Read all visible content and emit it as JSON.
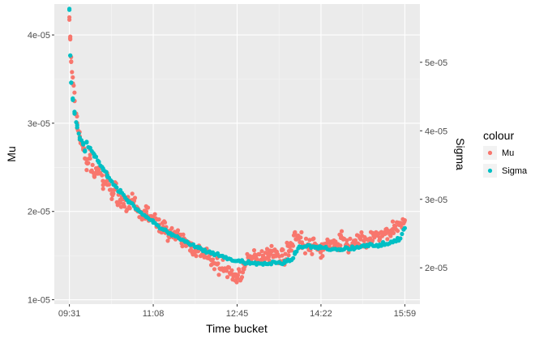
{
  "chart_data": {
    "type": "scatter",
    "xlabel": "Time bucket",
    "ylabel": "Mu",
    "y2label": "Sigma",
    "x_ticks": [
      "09:31",
      "11:08",
      "12:45",
      "14:22",
      "15:59"
    ],
    "x_range": [
      "09:31",
      "15:59"
    ],
    "y_ticks": [
      "1e-05",
      "2e-05",
      "3e-05",
      "4e-05"
    ],
    "y_range": [
      9.5e-06,
      4.35e-05
    ],
    "y2_ticks": [
      "2e-05",
      "3e-05",
      "4e-05",
      "5e-05"
    ],
    "y2_range": [
      1.47e-05,
      5.85e-05
    ],
    "grid": true,
    "legend": {
      "title": "colour",
      "position": "right",
      "entries": [
        {
          "name": "Mu",
          "color": "#F8766D"
        },
        {
          "name": "Sigma",
          "color": "#00BFC4"
        }
      ]
    },
    "series": [
      {
        "name": "Mu",
        "axis": "left",
        "color": "#F8766D",
        "points": [
          [
            "09:31",
            4.2e-05
          ],
          [
            "09:32",
            3.95e-05
          ],
          [
            "09:33",
            3.7e-05
          ],
          [
            "09:35",
            3.45e-05
          ],
          [
            "09:37",
            3.25e-05
          ],
          [
            "09:40",
            3e-05
          ],
          [
            "09:43",
            2.85e-05
          ],
          [
            "09:47",
            2.7e-05
          ],
          [
            "09:51",
            2.55e-05
          ],
          [
            "09:55",
            2.6e-05
          ],
          [
            "10:00",
            2.4e-05
          ],
          [
            "10:05",
            2.5e-05
          ],
          [
            "10:10",
            2.3e-05
          ],
          [
            "10:15",
            2.35e-05
          ],
          [
            "10:20",
            2.2e-05
          ],
          [
            "10:25",
            2.25e-05
          ],
          [
            "10:30",
            2.1e-05
          ],
          [
            "10:35",
            2.15e-05
          ],
          [
            "10:40",
            2.05e-05
          ],
          [
            "10:45",
            2.1e-05
          ],
          [
            "10:50",
            2e-05
          ],
          [
            "10:55",
            1.95e-05
          ],
          [
            "11:00",
            2e-05
          ],
          [
            "11:08",
            1.9e-05
          ],
          [
            "11:15",
            1.85e-05
          ],
          [
            "11:22",
            1.8e-05
          ],
          [
            "11:30",
            1.75e-05
          ],
          [
            "11:37",
            1.7e-05
          ],
          [
            "11:45",
            1.65e-05
          ],
          [
            "11:52",
            1.6e-05
          ],
          [
            "12:00",
            1.55e-05
          ],
          [
            "12:07",
            1.5e-05
          ],
          [
            "12:15",
            1.45e-05
          ],
          [
            "12:22",
            1.4e-05
          ],
          [
            "12:30",
            1.35e-05
          ],
          [
            "12:37",
            1.3e-05
          ],
          [
            "12:45",
            1.25e-05
          ],
          [
            "12:52",
            1.35e-05
          ],
          [
            "13:00",
            1.45e-05
          ],
          [
            "13:07",
            1.5e-05
          ],
          [
            "13:15",
            1.5e-05
          ],
          [
            "13:22",
            1.55e-05
          ],
          [
            "13:30",
            1.5e-05
          ],
          [
            "13:37",
            1.5e-05
          ],
          [
            "13:45",
            1.55e-05
          ],
          [
            "13:52",
            1.75e-05
          ],
          [
            "14:00",
            1.65e-05
          ],
          [
            "14:07",
            1.6e-05
          ],
          [
            "14:15",
            1.6e-05
          ],
          [
            "14:22",
            1.55e-05
          ],
          [
            "14:30",
            1.65e-05
          ],
          [
            "14:37",
            1.6e-05
          ],
          [
            "14:45",
            1.7e-05
          ],
          [
            "14:52",
            1.6e-05
          ],
          [
            "15:00",
            1.65e-05
          ],
          [
            "15:07",
            1.7e-05
          ],
          [
            "15:15",
            1.6e-05
          ],
          [
            "15:22",
            1.75e-05
          ],
          [
            "15:30",
            1.7e-05
          ],
          [
            "15:37",
            1.75e-05
          ],
          [
            "15:45",
            1.8e-05
          ],
          [
            "15:52",
            1.85e-05
          ],
          [
            "15:59",
            1.9e-05
          ]
        ]
      },
      {
        "name": "Sigma",
        "axis": "right",
        "color": "#00BFC4",
        "points": [
          [
            "09:31",
            5.78e-05
          ],
          [
            "09:32",
            5.1e-05
          ],
          [
            "09:33",
            4.7e-05
          ],
          [
            "09:35",
            4.45e-05
          ],
          [
            "09:37",
            4.25e-05
          ],
          [
            "09:40",
            4.05e-05
          ],
          [
            "09:43",
            3.9e-05
          ],
          [
            "09:47",
            3.8e-05
          ],
          [
            "09:49",
            3.7e-05
          ],
          [
            "09:51",
            3.83e-05
          ],
          [
            "09:55",
            3.75e-05
          ],
          [
            "10:00",
            3.65e-05
          ],
          [
            "10:05",
            3.55e-05
          ],
          [
            "10:10",
            3.45e-05
          ],
          [
            "10:15",
            3.35e-05
          ],
          [
            "10:20",
            3.26e-05
          ],
          [
            "10:30",
            3.1e-05
          ],
          [
            "10:40",
            2.97e-05
          ],
          [
            "10:50",
            2.85e-05
          ],
          [
            "11:00",
            2.74e-05
          ],
          [
            "11:08",
            2.66e-05
          ],
          [
            "11:20",
            2.56e-05
          ],
          [
            "11:30",
            2.48e-05
          ],
          [
            "11:45",
            2.38e-05
          ],
          [
            "12:00",
            2.29e-05
          ],
          [
            "12:15",
            2.21e-05
          ],
          [
            "12:30",
            2.15e-05
          ],
          [
            "12:45",
            2.1e-05
          ],
          [
            "13:00",
            2.06e-05
          ],
          [
            "13:15",
            2.06e-05
          ],
          [
            "13:30",
            2.07e-05
          ],
          [
            "13:40",
            2.08e-05
          ],
          [
            "13:48",
            2.12e-05
          ],
          [
            "13:52",
            2.22e-05
          ],
          [
            "13:57",
            2.3e-05
          ],
          [
            "14:05",
            2.31e-05
          ],
          [
            "14:15",
            2.3e-05
          ],
          [
            "14:22",
            2.29e-05
          ],
          [
            "14:35",
            2.27e-05
          ],
          [
            "14:45",
            2.27e-05
          ],
          [
            "15:00",
            2.29e-05
          ],
          [
            "15:15",
            2.32e-05
          ],
          [
            "15:30",
            2.34e-05
          ],
          [
            "15:45",
            2.38e-05
          ],
          [
            "15:52",
            2.41e-05
          ],
          [
            "15:59",
            2.58e-05
          ]
        ]
      }
    ]
  }
}
